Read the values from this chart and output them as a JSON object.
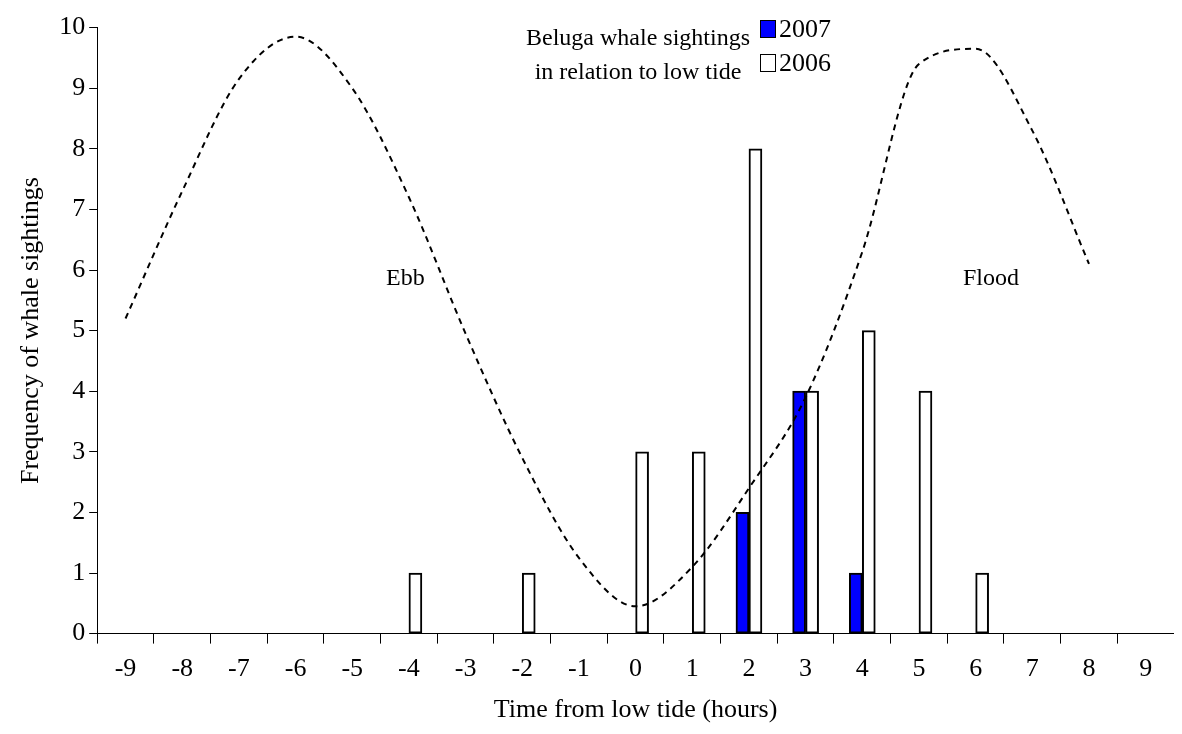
{
  "chart_data": {
    "type": "bar",
    "title": "Beluga whale sightings\nin relation  to low tide",
    "xlabel": "Time from low tide (hours)",
    "ylabel": "Frequency of whale sightings",
    "categories": [
      "-9",
      "-8",
      "-7",
      "-6",
      "-5",
      "-4",
      "-3",
      "-2",
      "-1",
      "0",
      "1",
      "2",
      "3",
      "4",
      "5",
      "6",
      "7",
      "8",
      "9"
    ],
    "series": [
      {
        "name": "2007",
        "color": "#0000ff",
        "values": [
          0,
          0,
          0,
          0,
          0,
          0,
          0,
          0,
          0,
          0,
          0,
          2,
          4,
          1,
          0,
          0,
          0,
          0,
          0
        ]
      },
      {
        "name": "2006",
        "color": "#ffffff",
        "values": [
          0,
          0,
          0,
          0,
          0,
          1,
          0,
          1,
          0,
          3,
          3,
          8,
          4,
          5,
          4,
          1,
          0,
          0,
          0
        ]
      },
      {
        "type": "line",
        "color": "#000000",
        "line_style": "dashed",
        "values": [
          5.2,
          7.3,
          9.15,
          9.85,
          9.0,
          7.2,
          4.95,
          2.9,
          1.25,
          0.45,
          1.1,
          2.4,
          3.9,
          6.3,
          9.4,
          9.65,
          8.3,
          6.1,
          null
        ]
      }
    ],
    "ylim": [
      0,
      10
    ],
    "yticks": [
      0,
      1,
      2,
      3,
      4,
      5,
      6,
      7,
      8,
      9,
      10
    ],
    "grid": false,
    "legend": "top",
    "annotations": [
      "Ebb",
      "Flood"
    ]
  }
}
